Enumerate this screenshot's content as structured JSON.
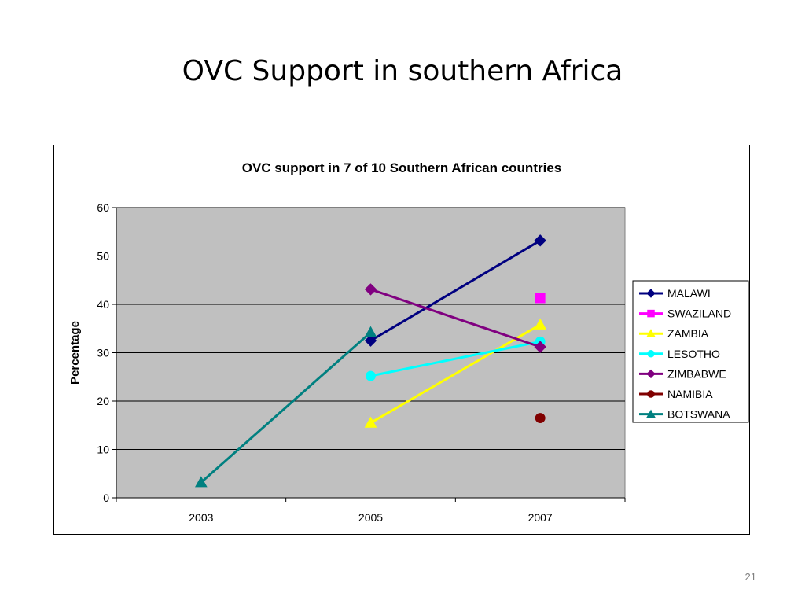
{
  "slide": {
    "title": "OVC Support in southern Africa",
    "page_number": "21"
  },
  "chart_data": {
    "type": "line",
    "title": "OVC support in 7 of 10 Southern African countries",
    "xlabel": "",
    "ylabel": "Percentage",
    "categories": [
      "2003",
      "2005",
      "2007"
    ],
    "ylim": [
      0,
      60
    ],
    "yticks": [
      0,
      10,
      20,
      30,
      40,
      50,
      60
    ],
    "grid": true,
    "plot_background": "#c0c0c0",
    "legend_position": "right",
    "series": [
      {
        "name": "MALAWI",
        "color": "#000080",
        "marker": "diamond",
        "values": [
          null,
          32.5,
          53.2
        ]
      },
      {
        "name": "SWAZILAND",
        "color": "#ff00ff",
        "marker": "square",
        "values": [
          null,
          null,
          41.3
        ]
      },
      {
        "name": "ZAMBIA",
        "color": "#ffff00",
        "marker": "triangle",
        "values": [
          null,
          15.5,
          35.8
        ]
      },
      {
        "name": "LESOTHO",
        "color": "#00ffff",
        "marker": "circle",
        "values": [
          null,
          25.2,
          32.3
        ]
      },
      {
        "name": "ZIMBABWE",
        "color": "#800080",
        "marker": "diamond",
        "values": [
          null,
          43.1,
          31.2
        ]
      },
      {
        "name": "NAMIBIA",
        "color": "#800000",
        "marker": "circle",
        "values": [
          null,
          null,
          16.5
        ]
      },
      {
        "name": "BOTSWANA",
        "color": "#008080",
        "marker": "triangle",
        "values": [
          3.2,
          34.2,
          null
        ]
      }
    ]
  }
}
